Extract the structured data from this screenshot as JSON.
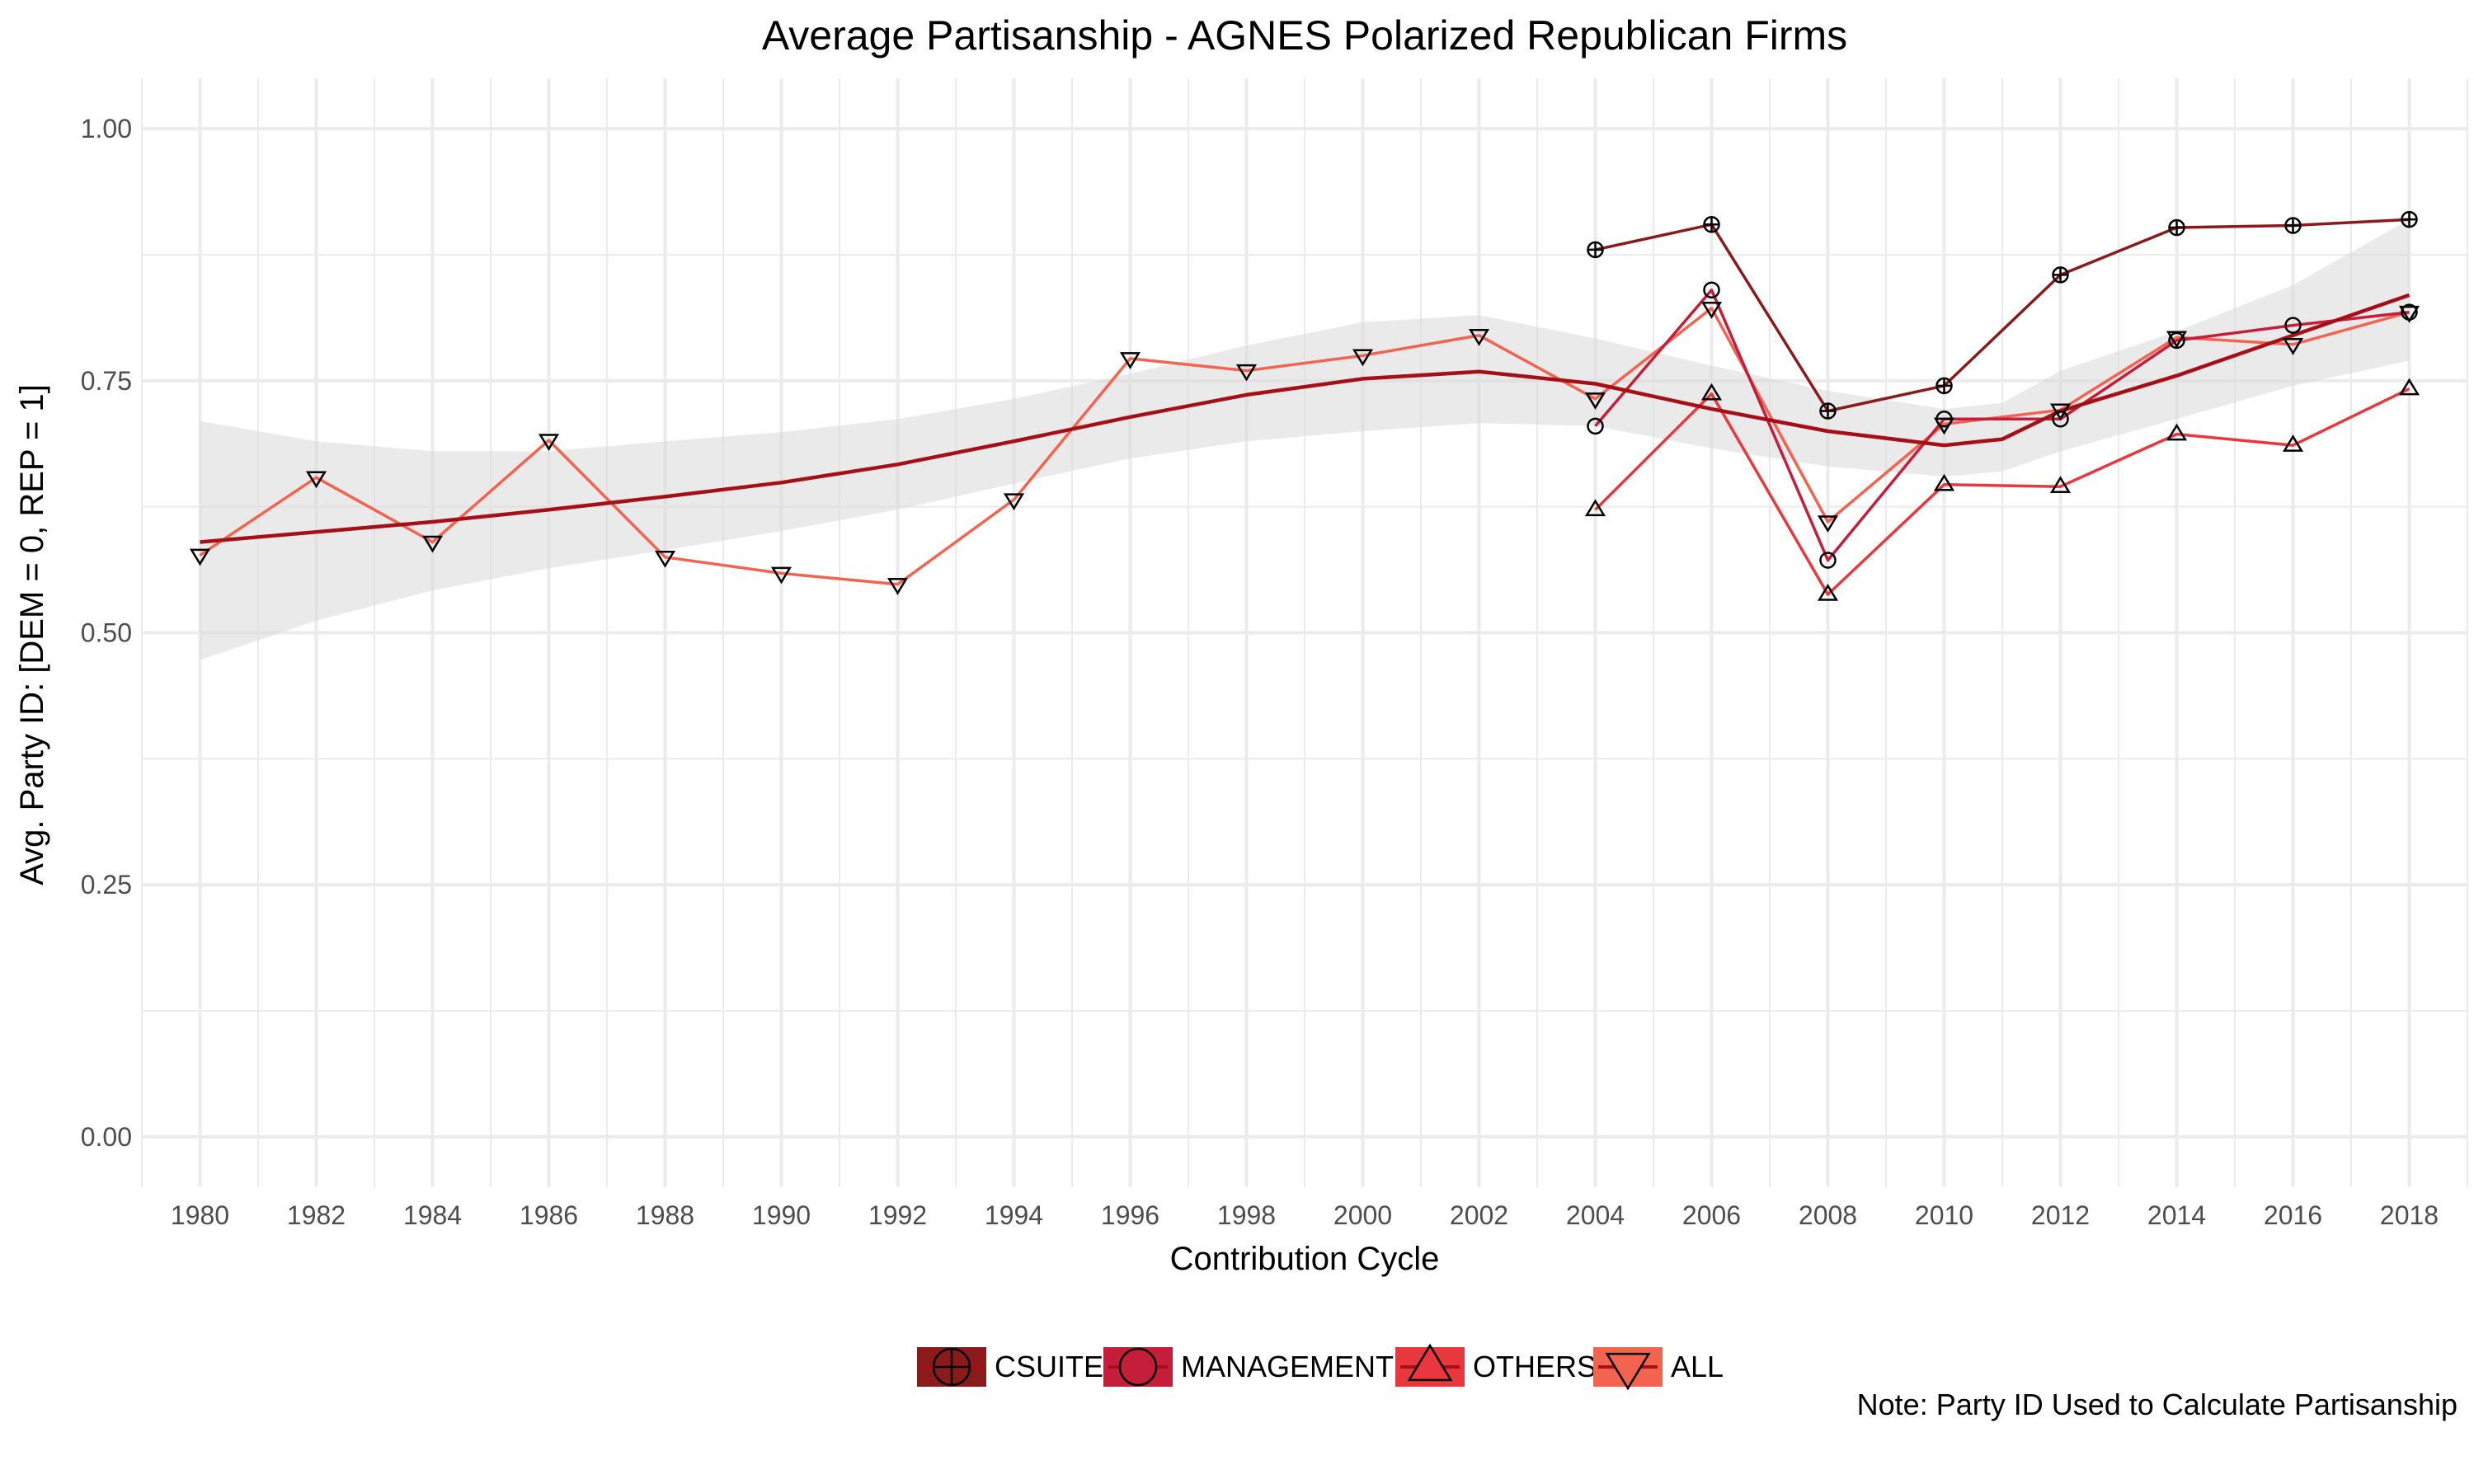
{
  "chart_data": {
    "type": "line",
    "title": "Average Partisanship - AGNES Polarized Republican Firms",
    "xlabel": "Contribution Cycle",
    "ylabel": "Avg. Party ID: [DEM = 0, REP = 1]",
    "caption": "Note: Party ID Used to Calculate Partisanship",
    "xlim": [
      1979,
      2019
    ],
    "ylim": [
      -0.05,
      1.05
    ],
    "x_ticks": [
      1980,
      1982,
      1984,
      1986,
      1988,
      1990,
      1992,
      1994,
      1996,
      1998,
      2000,
      2002,
      2004,
      2006,
      2008,
      2010,
      2012,
      2014,
      2016,
      2018
    ],
    "y_ticks": [
      0.0,
      0.25,
      0.5,
      0.75,
      1.0
    ],
    "y_tick_labels": [
      "0.00",
      "0.25",
      "0.50",
      "0.75",
      "1.00"
    ],
    "grid": true,
    "legend_position": "bottom",
    "series": [
      {
        "name": "CSUITE",
        "color": "#8b1a1a",
        "marker": "circle-plus",
        "x": [
          2004,
          2006,
          2008,
          2010,
          2012,
          2014,
          2016,
          2018
        ],
        "y": [
          0.88,
          0.905,
          0.72,
          0.745,
          0.855,
          0.902,
          0.904,
          0.91
        ]
      },
      {
        "name": "MANAGEMENT",
        "color": "#c41e3a",
        "marker": "circle",
        "x": [
          2004,
          2006,
          2008,
          2010,
          2012,
          2014,
          2016,
          2018
        ],
        "y": [
          0.705,
          0.84,
          0.572,
          0.712,
          0.712,
          0.79,
          0.805,
          0.818
        ]
      },
      {
        "name": "OTHERS",
        "color": "#e8383d",
        "marker": "triangle-up",
        "x": [
          2004,
          2006,
          2008,
          2010,
          2012,
          2014,
          2016,
          2018
        ],
        "y": [
          0.622,
          0.737,
          0.538,
          0.647,
          0.645,
          0.697,
          0.686,
          0.742
        ]
      },
      {
        "name": "ALL",
        "color": "#f26450",
        "marker": "triangle-down",
        "x": [
          1980,
          1982,
          1984,
          1986,
          1988,
          1990,
          1992,
          1994,
          1996,
          1998,
          2000,
          2002,
          2004,
          2006,
          2008,
          2010,
          2012,
          2014,
          2016,
          2018
        ],
        "y": [
          0.577,
          0.654,
          0.59,
          0.691,
          0.575,
          0.559,
          0.548,
          0.632,
          0.772,
          0.76,
          0.775,
          0.795,
          0.732,
          0.822,
          0.61,
          0.707,
          0.721,
          0.793,
          0.786,
          0.818
        ]
      }
    ],
    "smooth": {
      "color": "#a50f15",
      "ribbon_color": "#d9d9d9",
      "x": [
        1980,
        1982,
        1984,
        1986,
        1988,
        1990,
        1992,
        1994,
        1996,
        1998,
        2000,
        2002,
        2004,
        2006,
        2008,
        2010,
        2011,
        2012,
        2014,
        2016,
        2018
      ],
      "y": [
        0.59,
        0.6,
        0.61,
        0.622,
        0.635,
        0.649,
        0.667,
        0.69,
        0.714,
        0.736,
        0.752,
        0.759,
        0.747,
        0.722,
        0.7,
        0.686,
        0.692,
        0.72,
        0.755,
        0.795,
        0.835
      ],
      "lower": [
        0.473,
        0.512,
        0.542,
        0.564,
        0.582,
        0.601,
        0.622,
        0.648,
        0.673,
        0.69,
        0.7,
        0.708,
        0.705,
        0.683,
        0.665,
        0.655,
        0.66,
        0.68,
        0.712,
        0.745,
        0.77
      ],
      "upper": [
        0.71,
        0.69,
        0.68,
        0.68,
        0.69,
        0.699,
        0.712,
        0.732,
        0.757,
        0.785,
        0.808,
        0.815,
        0.792,
        0.765,
        0.74,
        0.722,
        0.728,
        0.76,
        0.799,
        0.845,
        0.91
      ]
    }
  }
}
